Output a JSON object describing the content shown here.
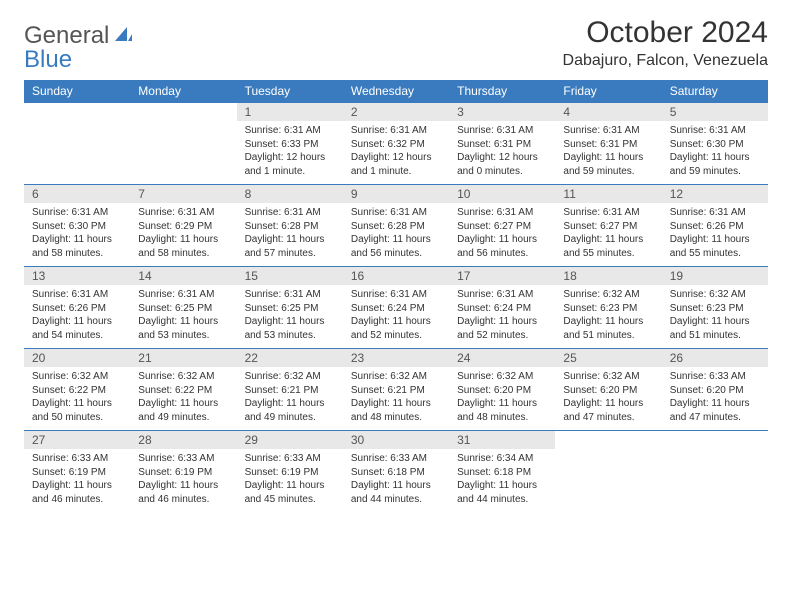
{
  "logo": {
    "text_gray": "General",
    "text_blue": "Blue"
  },
  "header": {
    "month_title": "October 2024",
    "location": "Dabajuro, Falcon, Venezuela"
  },
  "colors": {
    "header_bg": "#3a7bbf",
    "header_text": "#ffffff",
    "daynum_bg": "#e8e8e8",
    "daynum_text": "#555555",
    "cell_text": "#333333",
    "rule": "#3a7bbf",
    "page_bg": "#ffffff"
  },
  "day_names": [
    "Sunday",
    "Monday",
    "Tuesday",
    "Wednesday",
    "Thursday",
    "Friday",
    "Saturday"
  ],
  "weeks": [
    [
      null,
      null,
      {
        "n": "1",
        "sr": "Sunrise: 6:31 AM",
        "ss": "Sunset: 6:33 PM",
        "dl": "Daylight: 12 hours and 1 minute."
      },
      {
        "n": "2",
        "sr": "Sunrise: 6:31 AM",
        "ss": "Sunset: 6:32 PM",
        "dl": "Daylight: 12 hours and 1 minute."
      },
      {
        "n": "3",
        "sr": "Sunrise: 6:31 AM",
        "ss": "Sunset: 6:31 PM",
        "dl": "Daylight: 12 hours and 0 minutes."
      },
      {
        "n": "4",
        "sr": "Sunrise: 6:31 AM",
        "ss": "Sunset: 6:31 PM",
        "dl": "Daylight: 11 hours and 59 minutes."
      },
      {
        "n": "5",
        "sr": "Sunrise: 6:31 AM",
        "ss": "Sunset: 6:30 PM",
        "dl": "Daylight: 11 hours and 59 minutes."
      }
    ],
    [
      {
        "n": "6",
        "sr": "Sunrise: 6:31 AM",
        "ss": "Sunset: 6:30 PM",
        "dl": "Daylight: 11 hours and 58 minutes."
      },
      {
        "n": "7",
        "sr": "Sunrise: 6:31 AM",
        "ss": "Sunset: 6:29 PM",
        "dl": "Daylight: 11 hours and 58 minutes."
      },
      {
        "n": "8",
        "sr": "Sunrise: 6:31 AM",
        "ss": "Sunset: 6:28 PM",
        "dl": "Daylight: 11 hours and 57 minutes."
      },
      {
        "n": "9",
        "sr": "Sunrise: 6:31 AM",
        "ss": "Sunset: 6:28 PM",
        "dl": "Daylight: 11 hours and 56 minutes."
      },
      {
        "n": "10",
        "sr": "Sunrise: 6:31 AM",
        "ss": "Sunset: 6:27 PM",
        "dl": "Daylight: 11 hours and 56 minutes."
      },
      {
        "n": "11",
        "sr": "Sunrise: 6:31 AM",
        "ss": "Sunset: 6:27 PM",
        "dl": "Daylight: 11 hours and 55 minutes."
      },
      {
        "n": "12",
        "sr": "Sunrise: 6:31 AM",
        "ss": "Sunset: 6:26 PM",
        "dl": "Daylight: 11 hours and 55 minutes."
      }
    ],
    [
      {
        "n": "13",
        "sr": "Sunrise: 6:31 AM",
        "ss": "Sunset: 6:26 PM",
        "dl": "Daylight: 11 hours and 54 minutes."
      },
      {
        "n": "14",
        "sr": "Sunrise: 6:31 AM",
        "ss": "Sunset: 6:25 PM",
        "dl": "Daylight: 11 hours and 53 minutes."
      },
      {
        "n": "15",
        "sr": "Sunrise: 6:31 AM",
        "ss": "Sunset: 6:25 PM",
        "dl": "Daylight: 11 hours and 53 minutes."
      },
      {
        "n": "16",
        "sr": "Sunrise: 6:31 AM",
        "ss": "Sunset: 6:24 PM",
        "dl": "Daylight: 11 hours and 52 minutes."
      },
      {
        "n": "17",
        "sr": "Sunrise: 6:31 AM",
        "ss": "Sunset: 6:24 PM",
        "dl": "Daylight: 11 hours and 52 minutes."
      },
      {
        "n": "18",
        "sr": "Sunrise: 6:32 AM",
        "ss": "Sunset: 6:23 PM",
        "dl": "Daylight: 11 hours and 51 minutes."
      },
      {
        "n": "19",
        "sr": "Sunrise: 6:32 AM",
        "ss": "Sunset: 6:23 PM",
        "dl": "Daylight: 11 hours and 51 minutes."
      }
    ],
    [
      {
        "n": "20",
        "sr": "Sunrise: 6:32 AM",
        "ss": "Sunset: 6:22 PM",
        "dl": "Daylight: 11 hours and 50 minutes."
      },
      {
        "n": "21",
        "sr": "Sunrise: 6:32 AM",
        "ss": "Sunset: 6:22 PM",
        "dl": "Daylight: 11 hours and 49 minutes."
      },
      {
        "n": "22",
        "sr": "Sunrise: 6:32 AM",
        "ss": "Sunset: 6:21 PM",
        "dl": "Daylight: 11 hours and 49 minutes."
      },
      {
        "n": "23",
        "sr": "Sunrise: 6:32 AM",
        "ss": "Sunset: 6:21 PM",
        "dl": "Daylight: 11 hours and 48 minutes."
      },
      {
        "n": "24",
        "sr": "Sunrise: 6:32 AM",
        "ss": "Sunset: 6:20 PM",
        "dl": "Daylight: 11 hours and 48 minutes."
      },
      {
        "n": "25",
        "sr": "Sunrise: 6:32 AM",
        "ss": "Sunset: 6:20 PM",
        "dl": "Daylight: 11 hours and 47 minutes."
      },
      {
        "n": "26",
        "sr": "Sunrise: 6:33 AM",
        "ss": "Sunset: 6:20 PM",
        "dl": "Daylight: 11 hours and 47 minutes."
      }
    ],
    [
      {
        "n": "27",
        "sr": "Sunrise: 6:33 AM",
        "ss": "Sunset: 6:19 PM",
        "dl": "Daylight: 11 hours and 46 minutes."
      },
      {
        "n": "28",
        "sr": "Sunrise: 6:33 AM",
        "ss": "Sunset: 6:19 PM",
        "dl": "Daylight: 11 hours and 46 minutes."
      },
      {
        "n": "29",
        "sr": "Sunrise: 6:33 AM",
        "ss": "Sunset: 6:19 PM",
        "dl": "Daylight: 11 hours and 45 minutes."
      },
      {
        "n": "30",
        "sr": "Sunrise: 6:33 AM",
        "ss": "Sunset: 6:18 PM",
        "dl": "Daylight: 11 hours and 44 minutes."
      },
      {
        "n": "31",
        "sr": "Sunrise: 6:34 AM",
        "ss": "Sunset: 6:18 PM",
        "dl": "Daylight: 11 hours and 44 minutes."
      },
      null,
      null
    ]
  ]
}
